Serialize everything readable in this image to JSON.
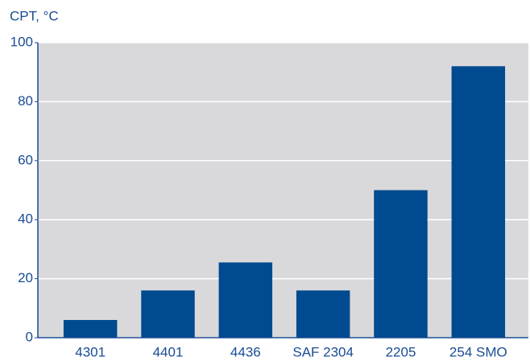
{
  "chart_data": {
    "type": "bar",
    "y_label": "CPT, °C",
    "categories": [
      "4301",
      "4401",
      "4436",
      "SAF 2304",
      "2205",
      "254 SMO"
    ],
    "values": [
      6,
      16,
      25.5,
      16,
      50,
      92
    ],
    "color": "#004a8f",
    "ylim": [
      0,
      100
    ],
    "yticks": [
      0,
      20,
      40,
      60,
      80,
      100
    ],
    "grid": true
  }
}
